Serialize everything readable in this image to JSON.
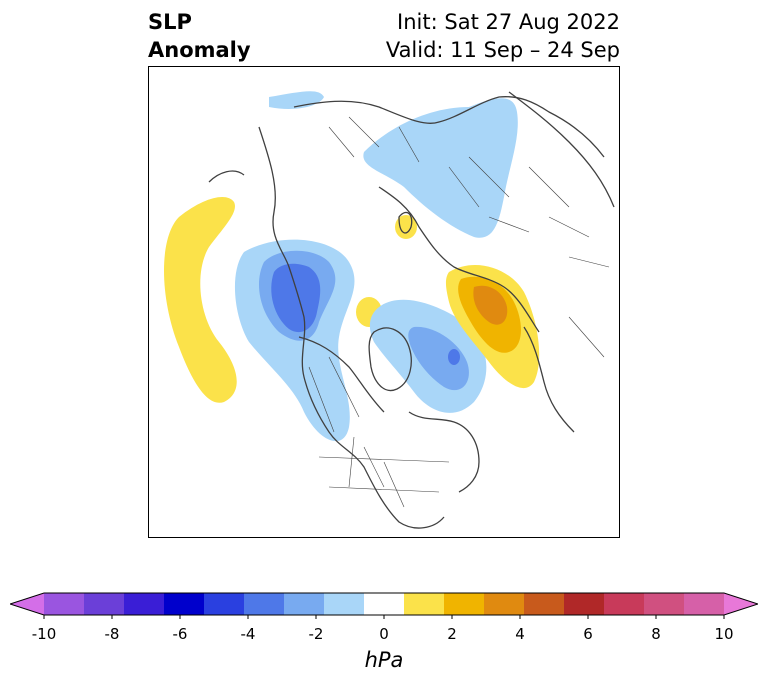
{
  "header": {
    "variable_line1": "SLP",
    "variable_line2": "Anomaly",
    "init_text": "Init: Sat 27 Aug 2022",
    "valid_text": "Valid: 11 Sep – 24 Sep"
  },
  "colorbar": {
    "units": "hPa",
    "tick_labels": [
      "-10",
      "-8",
      "-6",
      "-4",
      "-2",
      "0",
      "2",
      "4",
      "6",
      "8",
      "10"
    ],
    "min": -10,
    "max": 10,
    "extend": "both",
    "colors": [
      "#d46ee8",
      "#9a55e0",
      "#6b3fd8",
      "#3a1ed6",
      "#0000cc",
      "#2a40e0",
      "#4e78e8",
      "#78aaf0",
      "#a9d6f8",
      "#ffffff",
      "#fbe24a",
      "#f0b400",
      "#e08a10",
      "#c85a1c",
      "#b02828",
      "#c83a5a",
      "#d05080",
      "#d660a8",
      "#e878d8"
    ]
  },
  "colors": {
    "coastline": "#404040",
    "frame": "#000000"
  }
}
